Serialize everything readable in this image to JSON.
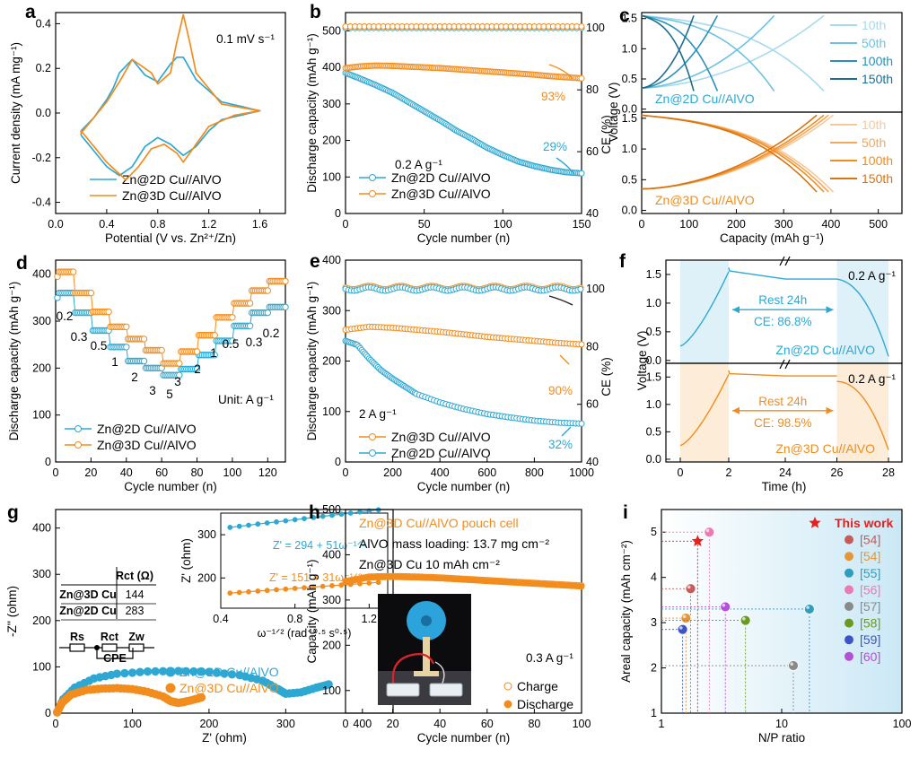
{
  "colors": {
    "blue": "#2ea8d2",
    "orange": "#f28c1c",
    "red": "#e8201c"
  },
  "chart_data": [
    {
      "panel": "a",
      "type": "line",
      "xlabel": "Potential (V vs. Zn²⁺/Zn)",
      "ylabel": "Current density (mA mg⁻¹)",
      "xlim": [
        0.0,
        1.8
      ],
      "ylim": [
        -0.45,
        0.45
      ],
      "xticks": [
        "0.0",
        "0.4",
        "0.8",
        "1.2",
        "1.6"
      ],
      "yticks": [
        "-0.4",
        "-0.2",
        "0.0",
        "0.2",
        "0.4"
      ],
      "annotation": "0.1 mV s⁻¹",
      "series": [
        {
          "name": "Zn@2D Cu//AlVO",
          "color": "blue",
          "x": [
            0.2,
            0.4,
            0.5,
            0.6,
            0.7,
            0.8,
            0.9,
            1.0,
            1.1,
            1.2,
            1.3,
            1.6,
            1.3,
            1.1,
            1.0,
            0.95,
            0.9,
            0.8,
            0.7,
            0.6,
            0.5,
            0.45,
            0.4,
            0.3,
            0.2
          ],
          "y": [
            -0.1,
            -0.24,
            -0.28,
            -0.24,
            -0.15,
            -0.11,
            -0.14,
            -0.19,
            -0.15,
            -0.08,
            -0.03,
            0.01,
            0.05,
            0.15,
            0.25,
            0.25,
            0.22,
            0.14,
            0.17,
            0.24,
            0.18,
            0.11,
            0.06,
            -0.02,
            -0.08
          ]
        },
        {
          "name": "Zn@3D Cu//AlVO",
          "color": "orange",
          "x": [
            0.2,
            0.4,
            0.55,
            0.65,
            0.75,
            0.85,
            0.95,
            1.0,
            1.1,
            1.2,
            1.4,
            1.6,
            1.3,
            1.1,
            1.05,
            1.0,
            0.95,
            0.9,
            0.8,
            0.75,
            0.6,
            0.5,
            0.4,
            0.3,
            0.2
          ],
          "y": [
            -0.08,
            -0.22,
            -0.3,
            -0.24,
            -0.16,
            -0.14,
            -0.18,
            -0.22,
            -0.14,
            -0.06,
            -0.01,
            0.01,
            0.04,
            0.18,
            0.32,
            0.44,
            0.32,
            0.18,
            0.13,
            0.18,
            0.24,
            0.14,
            0.05,
            -0.02,
            -0.09
          ]
        }
      ]
    },
    {
      "panel": "b",
      "type": "scatter",
      "xlabel": "Cycle number (n)",
      "ylabel": "Discharge capacity (mAh g⁻¹)",
      "y2label": "CE (%)",
      "xlim": [
        0,
        150
      ],
      "ylim": [
        0,
        550
      ],
      "y2lim": [
        40,
        105
      ],
      "xticks": [
        "0",
        "50",
        "100",
        "150"
      ],
      "yticks": [
        "0",
        "100",
        "200",
        "300",
        "400",
        "500"
      ],
      "y2ticks": [
        "40",
        "60",
        "80",
        "100"
      ],
      "rate": "0.2 A g⁻¹",
      "labels": {
        "orange": "93%",
        "blue": "29%"
      },
      "series": [
        {
          "name": "Zn@2D Cu//AlVO",
          "color": "blue",
          "x": [
            0,
            10,
            20,
            30,
            40,
            50,
            60,
            70,
            80,
            90,
            100,
            110,
            120,
            130,
            140,
            150
          ],
          "y": [
            385,
            368,
            350,
            330,
            305,
            280,
            255,
            228,
            205,
            180,
            160,
            142,
            130,
            120,
            113,
            110
          ],
          "ce": 100
        },
        {
          "name": "Zn@3D Cu//AlVO",
          "color": "orange",
          "x": [
            0,
            10,
            20,
            30,
            40,
            50,
            60,
            70,
            80,
            90,
            100,
            110,
            120,
            130,
            140,
            150
          ],
          "y": [
            398,
            403,
            405,
            404,
            402,
            400,
            398,
            395,
            392,
            389,
            386,
            383,
            380,
            376,
            373,
            370
          ],
          "ce": 100.5
        }
      ]
    },
    {
      "panel": "c",
      "type": "line",
      "xlabel": "Capacity (mAh g⁻¹)",
      "ylabel": "Voltage (V)",
      "xlim": [
        0,
        550
      ],
      "ylim": [
        -0.05,
        1.6
      ],
      "xticks": [
        "0",
        "100",
        "200",
        "300",
        "400",
        "500"
      ],
      "yticks": [
        "0.0",
        "0.5",
        "1.0",
        "1.5"
      ],
      "cycles": [
        "10th",
        "50th",
        "100th",
        "150th"
      ],
      "top": {
        "label": "Zn@2D Cu//AlVO",
        "color": "blue",
        "capacities": [
          385,
          280,
          160,
          110
        ],
        "shades": [
          "#a8d9ec",
          "#6cc3e1",
          "#2b8fb8",
          "#1d6d90"
        ]
      },
      "bottom": {
        "label": "Zn@3D Cu//AlVO",
        "color": "orange",
        "capacities": [
          405,
          395,
          385,
          370
        ],
        "shades": [
          "#f8c898",
          "#f4a85c",
          "#f28c1c",
          "#d97210"
        ]
      }
    },
    {
      "panel": "d",
      "type": "scatter",
      "xlabel": "Cycle number (n)",
      "ylabel": "Discharge capacity (mAh g⁻¹)",
      "xlim": [
        0,
        130
      ],
      "ylim": [
        0,
        430
      ],
      "xticks": [
        "0",
        "20",
        "40",
        "60",
        "80",
        "100",
        "120"
      ],
      "yticks": [
        "0",
        "100",
        "200",
        "300",
        "400"
      ],
      "unit_label": "Unit: A g⁻¹",
      "rate_labels": [
        "0.2",
        "0.3",
        "0.5",
        "1",
        "2",
        "3",
        "5",
        "3",
        "2",
        "1",
        "0.5",
        "0.3",
        "0.2"
      ],
      "series": [
        {
          "name": "Zn@2D Cu//AlVO",
          "color": "blue",
          "levels": [
            360,
            318,
            280,
            245,
            215,
            200,
            185,
            198,
            228,
            258,
            290,
            318,
            330
          ]
        },
        {
          "name": "Zn@3D Cu//AlVO",
          "color": "orange",
          "levels": [
            405,
            360,
            320,
            288,
            262,
            238,
            210,
            235,
            270,
            308,
            338,
            365,
            385
          ]
        }
      ]
    },
    {
      "panel": "e",
      "type": "scatter",
      "xlabel": "Cycle number (n)",
      "ylabel": "Discharge capacity (mAh g⁻¹)",
      "y2label": "CE (%)",
      "xlim": [
        0,
        1000
      ],
      "ylim": [
        0,
        400
      ],
      "y2lim": [
        40,
        110
      ],
      "xticks": [
        "0",
        "200",
        "400",
        "600",
        "800",
        "1000"
      ],
      "yticks": [
        "0",
        "100",
        "200",
        "300",
        "400"
      ],
      "y2ticks": [
        "40",
        "60",
        "80",
        "100"
      ],
      "rate": "2 A g⁻¹",
      "labels": {
        "orange": "90%",
        "blue": "32%"
      },
      "series": [
        {
          "name": "Zn@3D Cu//AlVO",
          "color": "orange",
          "x": [
            0,
            100,
            200,
            300,
            400,
            500,
            600,
            700,
            800,
            900,
            1000
          ],
          "y": [
            262,
            268,
            266,
            262,
            258,
            253,
            248,
            244,
            240,
            236,
            233
          ],
          "ce": 100.5
        },
        {
          "name": "Zn@2D Cu//AlVO",
          "color": "blue",
          "x": [
            0,
            50,
            100,
            150,
            200,
            250,
            300,
            400,
            500,
            600,
            700,
            800,
            900,
            1000
          ],
          "y": [
            240,
            232,
            205,
            182,
            165,
            150,
            135,
            118,
            105,
            95,
            88,
            82,
            78,
            76
          ],
          "ce": 100
        }
      ]
    },
    {
      "panel": "f",
      "type": "line",
      "xlabel": "Time (h)",
      "ylabel": "Voltage (V)",
      "xticks": [
        "0",
        "2",
        "24",
        "26",
        "28"
      ],
      "yticks_top": [
        "0.0",
        "0.5",
        "1.0",
        "1.5"
      ],
      "yticks_bottom": [
        "0.0",
        "0.5",
        "1.0",
        "1.5"
      ],
      "top": {
        "name": "Zn@2D Cu//AlVO",
        "color": "blue",
        "rate": "0.2 A g⁻¹",
        "rest": "Rest 24h",
        "ce": "CE: 86.8%"
      },
      "bottom": {
        "name": "Zn@3D Cu//AlVO",
        "color": "orange",
        "rate": "0.2 A g⁻¹",
        "rest": "Rest 24h",
        "ce": "CE: 98.5%"
      }
    },
    {
      "panel": "g",
      "type": "scatter",
      "xlabel": "Z' (ohm)",
      "ylabel": "-Z'' (ohm)",
      "xlim": [
        0,
        440
      ],
      "ylim": [
        0,
        440
      ],
      "xticks": [
        "0",
        "100",
        "200",
        "300",
        "400"
      ],
      "yticks": [
        "0",
        "100",
        "200",
        "300",
        "400"
      ],
      "series": [
        {
          "name": "Zn@2D Cu//AlVO",
          "color": "blue",
          "x": [
            2,
            10,
            25,
            50,
            80,
            120,
            160,
            200,
            240,
            270,
            290,
            300,
            320,
            340,
            356
          ],
          "y": [
            2,
            30,
            55,
            75,
            85,
            90,
            91,
            89,
            82,
            70,
            52,
            42,
            45,
            55,
            62
          ]
        },
        {
          "name": "Zn@3D Cu//AlVO",
          "color": "orange",
          "x": [
            2,
            8,
            20,
            40,
            60,
            80,
            100,
            120,
            140,
            150,
            160,
            175,
            190
          ],
          "y": [
            2,
            22,
            40,
            50,
            53,
            54,
            52,
            46,
            36,
            26,
            22,
            27,
            34
          ]
        }
      ],
      "table": {
        "header": "Rct (Ω)",
        "rows": [
          [
            "Zn@3D Cu",
            "144"
          ],
          [
            "Zn@2D Cu",
            "283"
          ]
        ]
      },
      "circuit": {
        "r1": "Rs",
        "r2": "Rct",
        "w": "Zw",
        "cpe": "CPE"
      },
      "inset": {
        "xlabel": "ω⁻¹ᐟ² (rad⁻⁰·⁵ s⁰·⁵)",
        "ylabel": "Z' (ohm)",
        "xlim": [
          0.4,
          1.3
        ],
        "ylim": [
          130,
          350
        ],
        "xticks": [
          "0.4",
          "0.8",
          "1.2"
        ],
        "yticks": [
          "200",
          "300"
        ],
        "fits": [
          {
            "label": "Z' = 294 + 51ω⁻¹ᐟ²",
            "color": "blue",
            "a": 294,
            "b": 51
          },
          {
            "label": "Z' = 151 + 31ω⁻¹ᐟ²",
            "color": "orange",
            "a": 151,
            "b": 31
          }
        ]
      }
    },
    {
      "panel": "h",
      "type": "scatter",
      "xlabel": "Cycle number (n)",
      "ylabel": "Capacity (mAh g⁻¹)",
      "xlim": [
        0,
        100
      ],
      "ylim": [
        50,
        500
      ],
      "xticks": [
        "0",
        "20",
        "40",
        "60",
        "80",
        "100"
      ],
      "yticks": [
        "100",
        "200",
        "300",
        "400",
        "500"
      ],
      "title": "Zn@3D Cu//AlVO pouch cell",
      "notes": [
        "AlVO mass loading: 13.7 mg cm⁻²",
        "Zn@3D Cu 10 mAh cm⁻²"
      ],
      "rate": "0.3 A g⁻¹",
      "series": [
        {
          "name": "Charge",
          "color": "orange",
          "filled": false,
          "x": [
            0,
            10,
            20,
            30,
            40,
            50,
            60,
            70,
            80,
            90,
            100
          ],
          "y": [
            342,
            352,
            353,
            352,
            350,
            347,
            344,
            341,
            338,
            335,
            332
          ]
        },
        {
          "name": "Discharge",
          "color": "orange",
          "filled": true,
          "x": [
            0,
            10,
            20,
            30,
            40,
            50,
            60,
            70,
            80,
            90,
            100
          ],
          "y": [
            340,
            350,
            351,
            350,
            348,
            345,
            342,
            339,
            336,
            333,
            330
          ]
        }
      ]
    },
    {
      "panel": "i",
      "type": "scatter",
      "xlabel": "N/P ratio",
      "ylabel": "Areal capacity (mAh cm⁻²)",
      "xscale": "log",
      "xlim": [
        1,
        100
      ],
      "ylim": [
        1,
        5.5
      ],
      "xticks": [
        "1",
        "10",
        "100"
      ],
      "yticks": [
        "1",
        "2",
        "3",
        "4",
        "5"
      ],
      "points": [
        {
          "label": "This work",
          "color": "#e8201c",
          "np": 2.0,
          "cap": 4.8,
          "marker": "star"
        },
        {
          "label": "[54]",
          "color": "#c85a5a",
          "np": 1.75,
          "cap": 3.75,
          "marker": "ball"
        },
        {
          "label": "[54]",
          "color": "#e3963a",
          "np": 1.6,
          "cap": 3.1,
          "marker": "ball"
        },
        {
          "label": "[55]",
          "color": "#2f9cc0",
          "np": 17,
          "cap": 3.3,
          "marker": "ball"
        },
        {
          "label": "[56]",
          "color": "#ee7ab3",
          "np": 2.5,
          "cap": 5.0,
          "marker": "ball"
        },
        {
          "label": "[57]",
          "color": "#8a8a8a",
          "np": 12.5,
          "cap": 2.05,
          "marker": "ball"
        },
        {
          "label": "[58]",
          "color": "#6a9a22",
          "np": 5.0,
          "cap": 3.05,
          "marker": "ball"
        },
        {
          "label": "[59]",
          "color": "#3b55c8",
          "np": 1.5,
          "cap": 2.85,
          "marker": "ball"
        },
        {
          "label": "[60]",
          "color": "#b44fd8",
          "np": 3.4,
          "cap": 3.35,
          "marker": "ball"
        }
      ]
    }
  ]
}
